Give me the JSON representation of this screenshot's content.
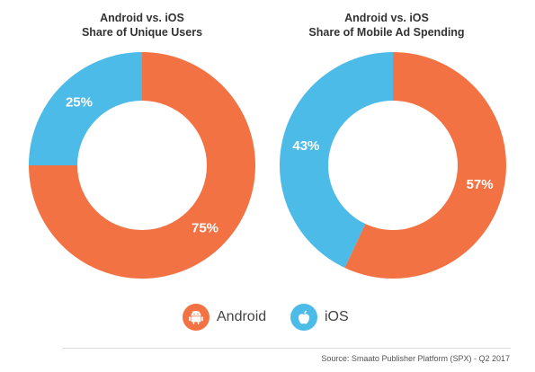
{
  "colors": {
    "android": "#f27244",
    "ios": "#4dbbe8"
  },
  "icons": {
    "android": "android-icon",
    "ios": "apple-icon"
  },
  "chart_data": [
    {
      "type": "pie",
      "title_lines": [
        "Android vs. iOS",
        "Share of Unique Users"
      ],
      "slices": [
        {
          "name": "Android",
          "value": 75,
          "label": "75%"
        },
        {
          "name": "iOS",
          "value": 25,
          "label": "25%"
        }
      ]
    },
    {
      "type": "pie",
      "title_lines": [
        "Android vs. iOS",
        "Share of Mobile Ad Spending"
      ],
      "slices": [
        {
          "name": "Android",
          "value": 57,
          "label": "57%"
        },
        {
          "name": "iOS",
          "value": 43,
          "label": "43%"
        }
      ]
    }
  ],
  "legend": [
    {
      "name": "Android"
    },
    {
      "name": "iOS"
    }
  ],
  "source": "Source: Smaato Publisher Platform (SPX) - Q2 2017"
}
